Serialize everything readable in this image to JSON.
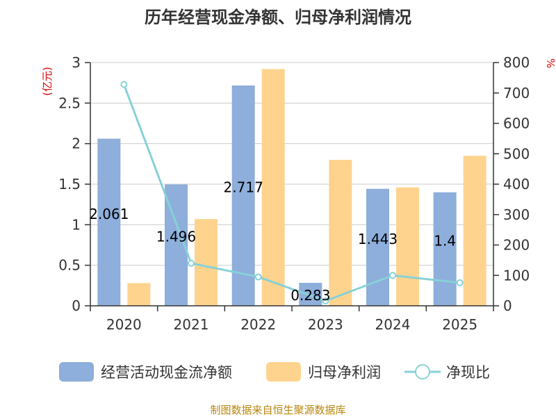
{
  "colors": {
    "series_a": "#8eaedb",
    "series_b": "#fed38e",
    "line": "#87d1d8",
    "axis": "#333333",
    "grid": "#cccccc",
    "unit": "#dd0000",
    "source": "#b8860b"
  },
  "chart_data": {
    "type": "bar",
    "title": "历年经营现金净额、归母净利润情况",
    "categories": [
      "2020",
      "2021",
      "2022",
      "2023",
      "2024",
      "2025"
    ],
    "left_axis": {
      "unit": "(亿元)",
      "ylim": [
        0,
        3
      ],
      "ticks": [
        "0",
        "0.5",
        "1",
        "1.5",
        "2",
        "2.5",
        "3"
      ],
      "tick_values": [
        0,
        0.5,
        1,
        1.5,
        2,
        2.5,
        3
      ]
    },
    "right_axis": {
      "unit": "%",
      "ylim": [
        0,
        800
      ],
      "ticks": [
        "0",
        "100",
        "200",
        "300",
        "400",
        "500",
        "600",
        "700",
        "800"
      ],
      "tick_values": [
        0,
        100,
        200,
        300,
        400,
        500,
        600,
        700,
        800
      ]
    },
    "series": [
      {
        "name": "经营活动现金流净额",
        "type": "bar",
        "axis": "left",
        "values": [
          2.061,
          1.496,
          2.717,
          0.283,
          1.443,
          1.4
        ],
        "labels": [
          "2.061",
          "1.496",
          "2.717",
          "0.283",
          "1.443",
          "1.4"
        ]
      },
      {
        "name": "归母净利润",
        "type": "bar",
        "axis": "left",
        "values": [
          0.28,
          1.07,
          2.92,
          1.8,
          1.46,
          1.85
        ]
      },
      {
        "name": "净现比",
        "type": "line",
        "axis": "right",
        "values": [
          728,
          140,
          95,
          16,
          100,
          76
        ]
      }
    ],
    "grid": true,
    "legend_position": "bottom",
    "source": "制图数据来自恒生聚源数据库"
  }
}
